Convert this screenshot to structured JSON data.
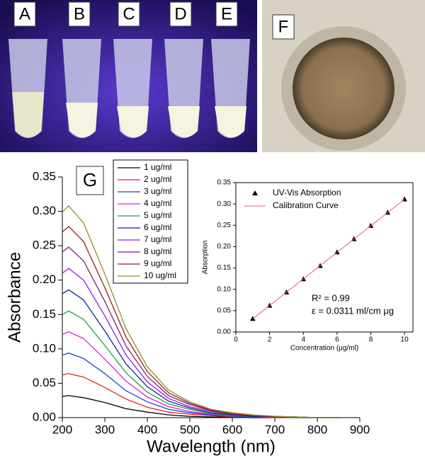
{
  "photos": {
    "labels": [
      "A",
      "B",
      "C",
      "D",
      "E",
      "F"
    ]
  },
  "chart_data": [
    {
      "type": "line",
      "panel_label": "G",
      "xlabel": "Wavelength (nm)",
      "ylabel": "Absorbance",
      "x": [
        200,
        215,
        250,
        300,
        350,
        400,
        450,
        500,
        550,
        600,
        650,
        700,
        750,
        800,
        850
      ],
      "xlim": [
        200,
        900
      ],
      "xticks": [
        200,
        300,
        400,
        500,
        600,
        700,
        800,
        900
      ],
      "ylim": [
        0,
        0.35
      ],
      "yticks": [
        {
          "value": 0,
          "label": "0.00"
        },
        0.05,
        {
          "value": 0.1,
          "label": "0.10"
        },
        0.15,
        {
          "value": 0.2,
          "label": "0.20"
        },
        0.25,
        {
          "value": 0.3,
          "label": "0.30"
        },
        0.35
      ],
      "series": [
        {
          "name": "1 ug/ml",
          "color": "#000000",
          "values": [
            0.031,
            0.032,
            0.029,
            0.022,
            0.013,
            0.008,
            0.004,
            0.002,
            0.001,
            0.001,
            0,
            0,
            0,
            0,
            0
          ]
        },
        {
          "name": "2 ug/ml",
          "color": "#e02020",
          "values": [
            0.062,
            0.064,
            0.059,
            0.044,
            0.027,
            0.015,
            0.008,
            0.005,
            0.003,
            0.001,
            0.001,
            0,
            0,
            0,
            0
          ]
        },
        {
          "name": "3 ug/ml",
          "color": "#2040d0",
          "values": [
            0.091,
            0.094,
            0.086,
            0.064,
            0.039,
            0.023,
            0.012,
            0.007,
            0.004,
            0.002,
            0.001,
            0.001,
            0,
            0,
            0
          ]
        },
        {
          "name": "4 ug/ml",
          "color": "#e020e0",
          "values": [
            0.121,
            0.125,
            0.115,
            0.085,
            0.053,
            0.03,
            0.016,
            0.009,
            0.005,
            0.003,
            0.002,
            0.001,
            0,
            0,
            0
          ]
        },
        {
          "name": "5 ug/ml",
          "color": "#20a040",
          "values": [
            0.15,
            0.155,
            0.143,
            0.105,
            0.065,
            0.037,
            0.02,
            0.012,
            0.006,
            0.003,
            0.002,
            0.001,
            0,
            0,
            0
          ]
        },
        {
          "name": "6 ug/ml",
          "color": "#1020a0",
          "values": [
            0.18,
            0.186,
            0.171,
            0.126,
            0.078,
            0.045,
            0.024,
            0.014,
            0.007,
            0.004,
            0.002,
            0.001,
            0.001,
            0,
            0
          ]
        },
        {
          "name": "7 ug/ml",
          "color": "#9020e0",
          "values": [
            0.21,
            0.217,
            0.2,
            0.148,
            0.091,
            0.052,
            0.028,
            0.016,
            0.009,
            0.005,
            0.003,
            0.001,
            0.001,
            0,
            0
          ]
        },
        {
          "name": "8 ug/ml",
          "color": "#802070",
          "values": [
            0.241,
            0.248,
            0.228,
            0.169,
            0.104,
            0.06,
            0.032,
            0.019,
            0.01,
            0.005,
            0.003,
            0.001,
            0.001,
            0,
            0
          ]
        },
        {
          "name": "9 ug/ml",
          "color": "#902020",
          "values": [
            0.27,
            0.278,
            0.256,
            0.189,
            0.117,
            0.067,
            0.036,
            0.021,
            0.011,
            0.006,
            0.003,
            0.002,
            0.001,
            0,
            0
          ]
        },
        {
          "name": "10 ug/ml",
          "color": "#909020",
          "values": [
            0.299,
            0.308,
            0.283,
            0.209,
            0.129,
            0.074,
            0.04,
            0.023,
            0.012,
            0.007,
            0.004,
            0.002,
            0.001,
            0,
            0
          ]
        }
      ]
    },
    {
      "type": "scatter",
      "xlabel": "Concentration (μg/ml)",
      "ylabel": "Absorption",
      "xlim": [
        0,
        10.5
      ],
      "xticks": [
        0,
        2,
        4,
        6,
        8,
        10
      ],
      "ylim": [
        0,
        0.35
      ],
      "yticks": [
        {
          "value": 0,
          "label": "0.00"
        },
        0.05,
        {
          "value": 0.1,
          "label": "0.10"
        },
        0.15,
        {
          "value": 0.2,
          "label": "0.20"
        },
        0.25,
        {
          "value": 0.3,
          "label": "0.30"
        },
        0.35
      ],
      "annotations": [
        "R² = 0.99",
        "ε = 0.0311 ml/cm μg"
      ],
      "series": [
        {
          "name": "UV-Vis Absorption",
          "color": "#000000",
          "mode": "markers",
          "x": [
            1,
            2,
            3,
            4,
            5,
            6,
            7,
            8,
            9,
            10
          ],
          "values": [
            0.031,
            0.062,
            0.093,
            0.124,
            0.155,
            0.187,
            0.218,
            0.249,
            0.28,
            0.311
          ]
        },
        {
          "name": "Calibration Curve",
          "color": "#e06070",
          "mode": "lines",
          "x": [
            1,
            10
          ],
          "values": [
            0.031,
            0.311
          ]
        }
      ]
    }
  ]
}
